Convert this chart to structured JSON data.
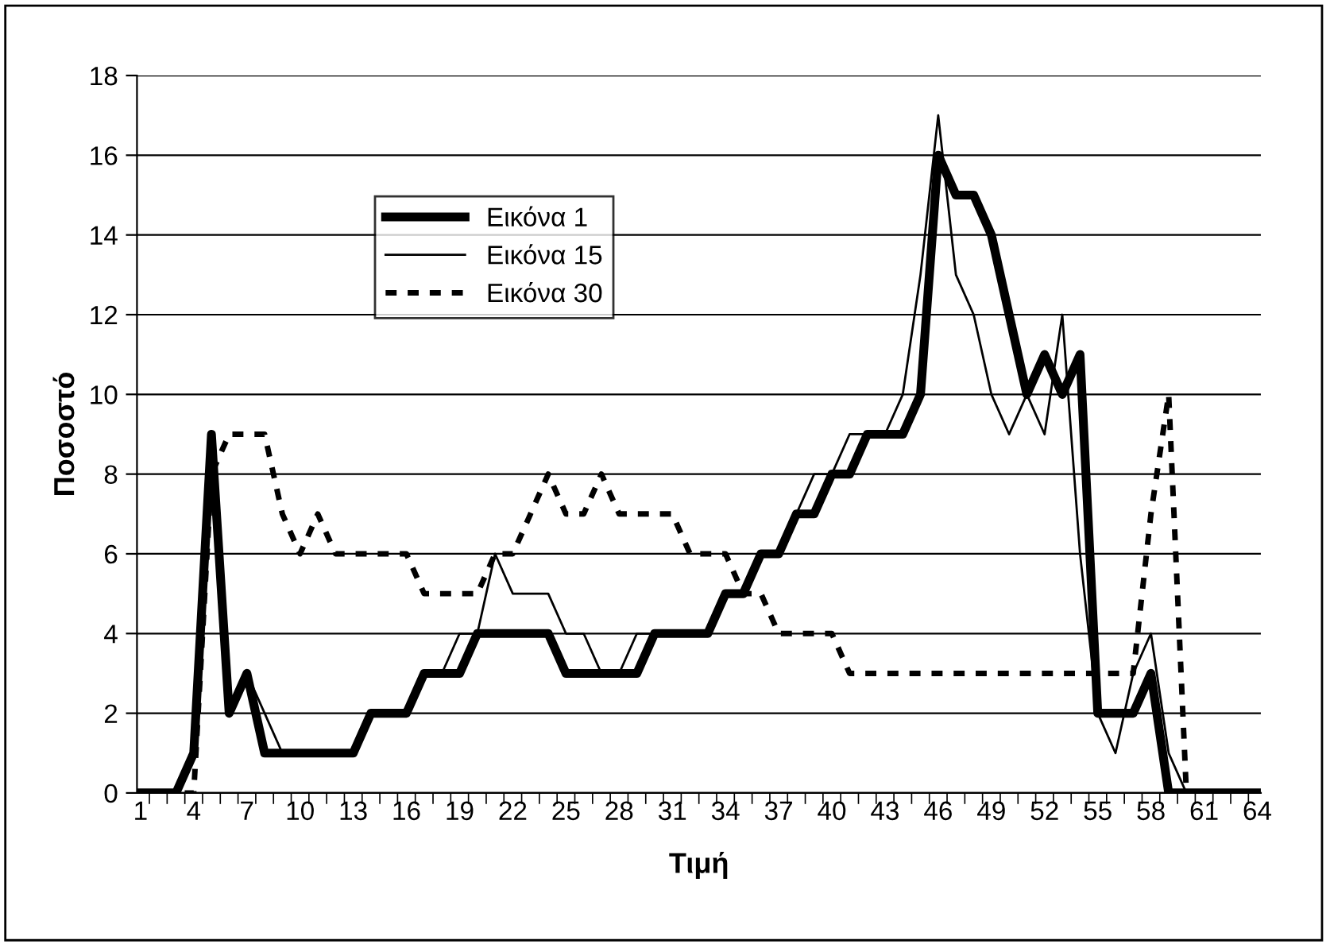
{
  "chart_data": {
    "type": "line",
    "xlabel": "Τιμή",
    "ylabel": "Ποσοστό",
    "categories": [
      "1",
      null,
      null,
      "4",
      null,
      null,
      "7",
      null,
      null,
      "10",
      null,
      null,
      "13",
      null,
      null,
      "16",
      null,
      null,
      "19",
      null,
      null,
      "22",
      null,
      null,
      "25",
      null,
      null,
      "28",
      null,
      null,
      "31",
      null,
      null,
      "34",
      null,
      null,
      "37",
      null,
      null,
      "40",
      null,
      null,
      "43",
      null,
      null,
      "46",
      null,
      null,
      "49",
      null,
      null,
      "52",
      null,
      null,
      "55",
      null,
      null,
      "58",
      null,
      null,
      "61",
      null,
      null,
      "64"
    ],
    "series": [
      {
        "name": "Εικόνα 1",
        "color": "#000000",
        "line_style": "solid",
        "values": [
          0,
          0,
          0,
          1,
          9,
          2,
          3,
          1,
          1,
          1,
          1,
          1,
          1,
          2,
          2,
          2,
          3,
          3,
          3,
          4,
          4,
          4,
          4,
          4,
          3,
          3,
          3,
          3,
          3,
          4,
          4,
          4,
          4,
          5,
          5,
          6,
          6,
          7,
          7,
          8,
          8,
          9,
          9,
          9,
          10,
          16,
          15,
          15,
          14,
          12,
          10,
          11,
          10,
          11,
          2,
          2,
          2,
          3,
          0,
          0,
          0,
          0,
          0,
          0
        ]
      },
      {
        "name": "Εικόνα 15",
        "color": "#000000",
        "line_style": "solid",
        "values": [
          0,
          0,
          0,
          1,
          8,
          2,
          3,
          2,
          1,
          1,
          1,
          1,
          1,
          2,
          2,
          2,
          3,
          3,
          4,
          4,
          6,
          5,
          5,
          5,
          4,
          4,
          3,
          3,
          4,
          4,
          4,
          4,
          4,
          5,
          5,
          6,
          6,
          7,
          8,
          8,
          9,
          9,
          9,
          10,
          13,
          17,
          13,
          12,
          10,
          9,
          10,
          9,
          12,
          6,
          2,
          1,
          3,
          4,
          1,
          0,
          0,
          0,
          0,
          0
        ]
      },
      {
        "name": "Εικόνα 30",
        "color": "#000000",
        "line_style": "dashed",
        "values": [
          0,
          0,
          0,
          0,
          8,
          9,
          9,
          9,
          7,
          6,
          7,
          6,
          6,
          6,
          6,
          6,
          5,
          5,
          5,
          5,
          6,
          6,
          7,
          8,
          7,
          7,
          8,
          7,
          7,
          7,
          7,
          6,
          6,
          6,
          5,
          5,
          4,
          4,
          4,
          4,
          3,
          3,
          3,
          3,
          3,
          3,
          3,
          3,
          3,
          3,
          3,
          3,
          3,
          3,
          3,
          3,
          3,
          7,
          10,
          0,
          0,
          0,
          0,
          0
        ]
      }
    ],
    "ylim": [
      0,
      18
    ],
    "yticks": [
      0,
      2,
      4,
      6,
      8,
      10,
      12,
      14,
      16,
      18
    ],
    "grid": "y",
    "legend": "top left",
    "marker": "none"
  }
}
